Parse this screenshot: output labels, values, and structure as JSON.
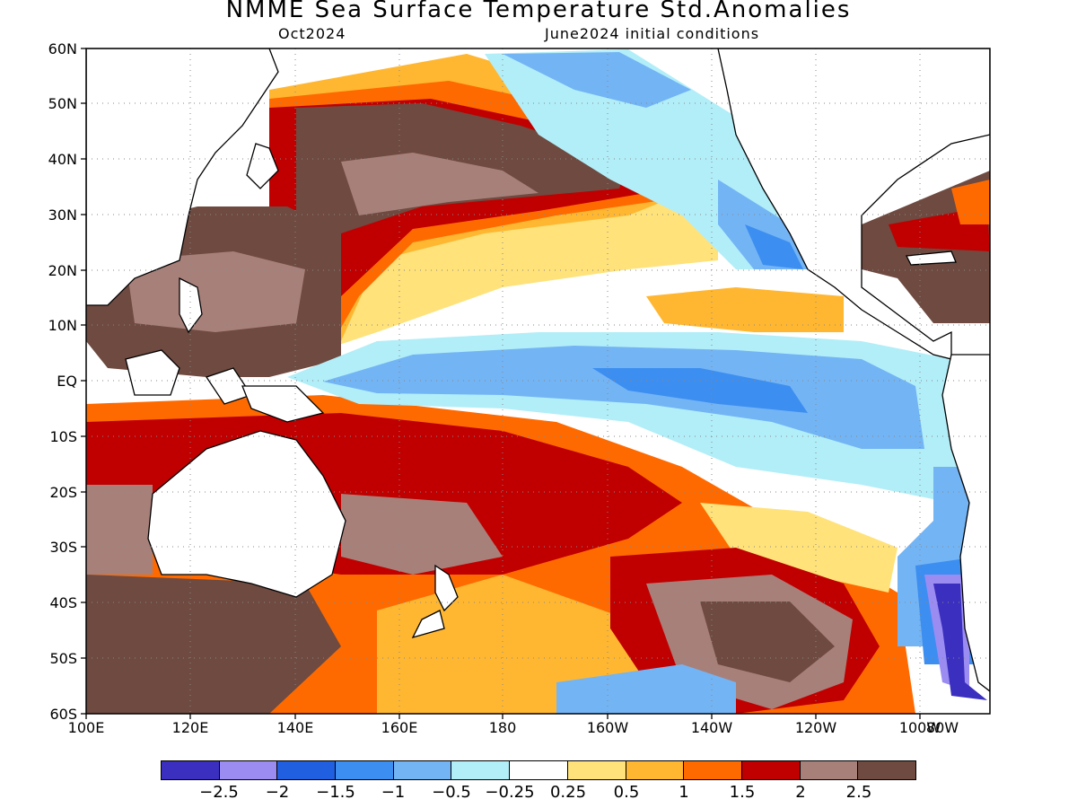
{
  "title": "NMME Sea Surface Temperature Std.Anomalies",
  "subtitle_left": "Oct2024",
  "subtitle_right": "June2024 initial conditions",
  "y_ticks": [
    "60N",
    "50N",
    "40N",
    "30N",
    "20N",
    "10N",
    "EQ",
    "10S",
    "20S",
    "30S",
    "40S",
    "50S",
    "60S"
  ],
  "x_ticks": [
    "100E",
    "120E",
    "140E",
    "160E",
    "180",
    "160W",
    "140W",
    "120W",
    "100W",
    "80W"
  ],
  "colorbar": {
    "colors": [
      "#3b2fbf",
      "#9b8cf2",
      "#1f5fe0",
      "#3c8ef0",
      "#73b4f5",
      "#b2eef8",
      "#ffffff",
      "#ffe27a",
      "#ffb732",
      "#ff6a00",
      "#c00000",
      "#a8807a",
      "#6e4a40"
    ],
    "labels": [
      "−2.5",
      "−2",
      "−1.5",
      "−1",
      "−0.5",
      "−0.25",
      "0.25",
      "0.5",
      "1",
      "1.5",
      "2",
      "2.5"
    ]
  },
  "map": {
    "region": "Pacific Ocean",
    "lon_range": [
      "100E",
      "70W"
    ],
    "lat_range": [
      "60S",
      "60N"
    ],
    "land_color": "#ffffff",
    "ocean_features": [
      {
        "name": "north-pacific-warm-blob",
        "anomaly": ">2.5"
      },
      {
        "name": "western-pacific-warm-pool",
        "anomaly": ">2.5"
      },
      {
        "name": "equatorial-cold-tongue",
        "anomaly": "-1"
      },
      {
        "name": "south-pacific-warm-band",
        "anomaly": "2"
      },
      {
        "name": "southeast-pacific-cold-patch",
        "anomaly": "-2.5"
      }
    ]
  }
}
